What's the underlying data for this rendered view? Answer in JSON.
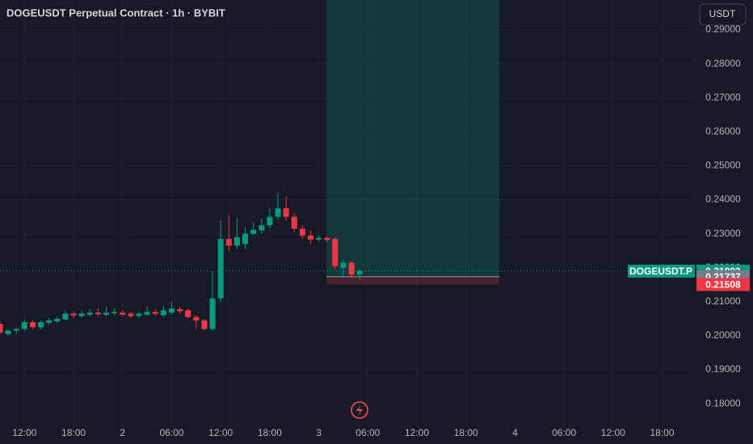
{
  "header": {
    "title": "DOGEUSDT Perpetual Contract · 1h · BYBIT",
    "currency_button": "USDT"
  },
  "chart_data": {
    "type": "candlestick",
    "open": [
      0.2035,
      0.2005,
      0.2015,
      0.202,
      0.204,
      0.2025,
      0.2038,
      0.2042,
      0.2048,
      0.2065,
      0.2058,
      0.2062,
      0.2068,
      0.2062,
      0.2066,
      0.2068,
      0.2065,
      0.2058,
      0.2062,
      0.207,
      0.206,
      0.2068,
      0.2078,
      0.2075,
      0.2055,
      0.2045,
      0.202,
      0.211,
      0.2285,
      0.2265,
      0.227,
      0.23,
      0.231,
      0.2325,
      0.235,
      0.2375,
      0.235,
      0.2315,
      0.2295,
      0.2283,
      0.2288,
      0.2285,
      0.22,
      0.2215,
      0.218
    ],
    "high": [
      0.204,
      0.202,
      0.2025,
      0.2048,
      0.2045,
      0.2045,
      0.2052,
      0.2058,
      0.2075,
      0.2072,
      0.2075,
      0.2078,
      0.208,
      0.2085,
      0.208,
      0.2075,
      0.207,
      0.2072,
      0.2085,
      0.2078,
      0.2088,
      0.21,
      0.2085,
      0.208,
      0.206,
      0.205,
      0.219,
      0.234,
      0.2355,
      0.2345,
      0.232,
      0.2335,
      0.2345,
      0.2375,
      0.242,
      0.241,
      0.236,
      0.2325,
      0.231,
      0.2295,
      0.2292,
      0.229,
      0.2225,
      0.222,
      0.2195
    ],
    "low": [
      0.2005,
      0.2,
      0.2005,
      0.2015,
      0.202,
      0.2018,
      0.2032,
      0.2038,
      0.2045,
      0.2052,
      0.2055,
      0.2058,
      0.2058,
      0.2058,
      0.206,
      0.2058,
      0.2052,
      0.2052,
      0.2058,
      0.206,
      0.2055,
      0.2062,
      0.2065,
      0.205,
      0.202,
      0.2015,
      0.2015,
      0.21,
      0.225,
      0.2255,
      0.2255,
      0.2295,
      0.23,
      0.2315,
      0.234,
      0.234,
      0.2305,
      0.2285,
      0.227,
      0.2278,
      0.2275,
      0.2195,
      0.217,
      0.217,
      0.2165
    ],
    "close": [
      0.201,
      0.2015,
      0.202,
      0.204,
      0.2025,
      0.204,
      0.2045,
      0.205,
      0.2065,
      0.206,
      0.2065,
      0.2068,
      0.2063,
      0.2068,
      0.207,
      0.2062,
      0.2058,
      0.2065,
      0.207,
      0.2065,
      0.2075,
      0.208,
      0.2072,
      0.2055,
      0.2045,
      0.202,
      0.211,
      0.2285,
      0.2265,
      0.229,
      0.23,
      0.2312,
      0.2325,
      0.235,
      0.2375,
      0.235,
      0.2315,
      0.2295,
      0.2283,
      0.2288,
      0.2282,
      0.2205,
      0.2215,
      0.218,
      0.21903
    ],
    "up_color": "#089981",
    "down_color": "#f23645",
    "xlim": [
      0,
      85
    ],
    "xticks": [
      {
        "value": 3,
        "label": "12:00"
      },
      {
        "value": 9,
        "label": "18:00"
      },
      {
        "value": 15,
        "label": "2"
      },
      {
        "value": 21,
        "label": "06:00"
      },
      {
        "value": 27,
        "label": "12:00"
      },
      {
        "value": 33,
        "label": "18:00"
      },
      {
        "value": 39,
        "label": "3"
      },
      {
        "value": 45,
        "label": "06:00"
      },
      {
        "value": 51,
        "label": "12:00"
      },
      {
        "value": 57,
        "label": "18:00"
      },
      {
        "value": 63,
        "label": "4"
      },
      {
        "value": 69,
        "label": "06:00"
      },
      {
        "value": 75,
        "label": "12:00"
      },
      {
        "value": 81,
        "label": "18:00"
      }
    ],
    "ylim": [
      0.1729,
      0.2988
    ],
    "yticks": [
      {
        "value": 0.18,
        "label": "0.18000"
      },
      {
        "value": 0.19,
        "label": "0.19000"
      },
      {
        "value": 0.2,
        "label": "0.20000"
      },
      {
        "value": 0.21,
        "label": "0.21000"
      },
      {
        "value": 0.22,
        "label": "0.22000"
      },
      {
        "value": 0.23,
        "label": "0.23000"
      },
      {
        "value": 0.24,
        "label": "0.24000"
      },
      {
        "value": 0.25,
        "label": "0.25000"
      },
      {
        "value": 0.26,
        "label": "0.26000"
      },
      {
        "value": 0.27,
        "label": "0.27000"
      },
      {
        "value": 0.28,
        "label": "0.28000"
      },
      {
        "value": 0.29,
        "label": "0.29000"
      }
    ],
    "grid": true,
    "last_price": {
      "name": "DOGEUSDT.P",
      "value": 0.21903,
      "label": "0.21903",
      "color": "#089981"
    },
    "position": {
      "entry": {
        "value": 0.21737,
        "label": "0.21737",
        "color": "#787b86"
      },
      "stop": {
        "value": 0.21508,
        "label": "0.21508",
        "color": "#f23645"
      }
    }
  }
}
